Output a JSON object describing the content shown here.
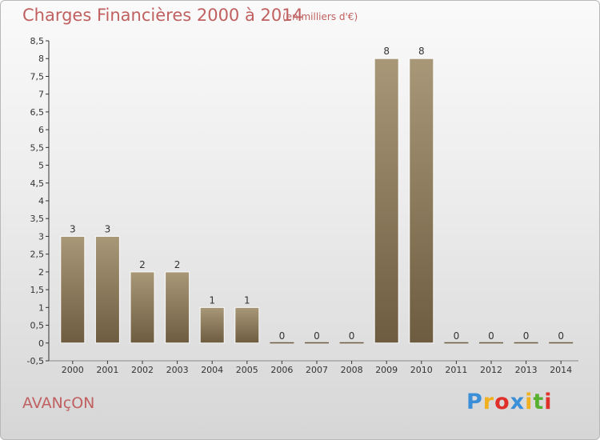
{
  "header": {
    "title": "Charges Financières 2000 à 2014",
    "subtitle": "(en milliers d'€)"
  },
  "commune": "AVANçON",
  "logo": {
    "text": "Proxiti",
    "letters": [
      "P",
      "r",
      "o",
      "x",
      "i",
      "t",
      "i"
    ],
    "colors": [
      "#3a8fd8",
      "#f0b020",
      "#e0302a",
      "#3a8fd8",
      "#f0b020",
      "#58b030",
      "#e0302a"
    ]
  },
  "colors": {
    "title": "#c06060",
    "bar_light": "#a89878",
    "bar_dark": "#6e5c40",
    "axis": "#333333"
  },
  "chart_data": {
    "type": "bar",
    "title": "Charges Financières 2000 à 2014",
    "subtitle": "(en milliers d'€)",
    "categories": [
      "2000",
      "2001",
      "2002",
      "2003",
      "2004",
      "2005",
      "2006",
      "2007",
      "2008",
      "2009",
      "2010",
      "2011",
      "2012",
      "2013",
      "2014"
    ],
    "values": [
      3,
      3,
      2,
      2,
      1,
      1,
      0,
      0,
      0,
      8,
      8,
      0,
      0,
      0,
      0
    ],
    "labels": [
      "3",
      "3",
      "2",
      "2",
      "1",
      "1",
      "0",
      "0",
      "0",
      "8",
      "8",
      "0",
      "0",
      "0",
      "0"
    ],
    "ylim": [
      -0.5,
      8.5
    ],
    "yticks": [
      "-0,5",
      "0",
      "0,5",
      "1",
      "1,5",
      "2",
      "2,5",
      "3",
      "3,5",
      "4",
      "4,5",
      "5",
      "5,5",
      "6",
      "6,5",
      "7",
      "7,5",
      "8",
      "8,5"
    ],
    "ytick_values": [
      -0.5,
      0,
      0.5,
      1,
      1.5,
      2,
      2.5,
      3,
      3.5,
      4,
      4.5,
      5,
      5.5,
      6,
      6.5,
      7,
      7.5,
      8,
      8.5
    ],
    "xlabel": "",
    "ylabel": "",
    "grid": false,
    "legend": "none"
  }
}
